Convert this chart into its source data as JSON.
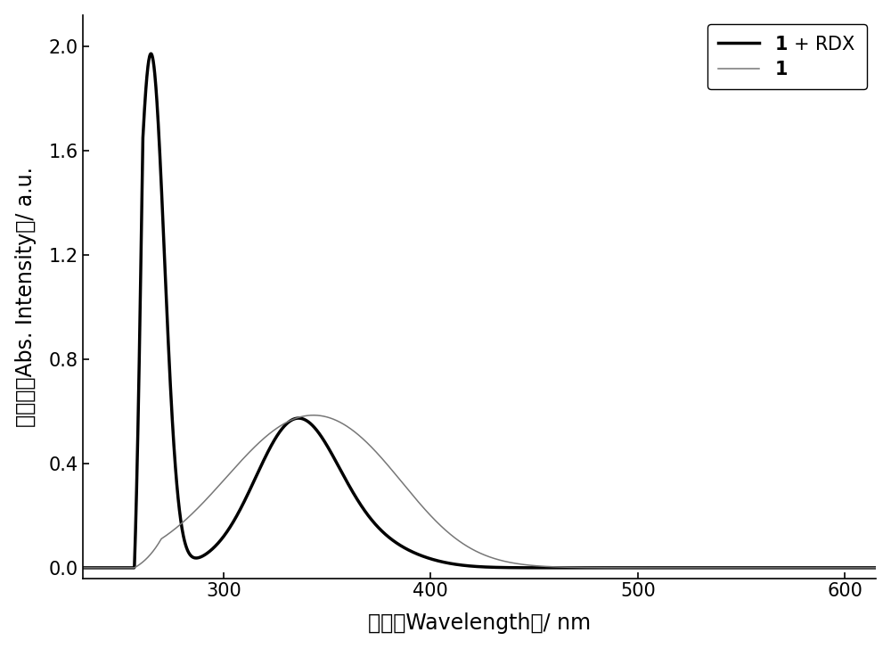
{
  "xlabel_chinese": "波长（Wavelength）/ nm",
  "ylabel_chinese": "吸光度（Abs. Intensity）/ a.u.",
  "xlim": [
    232,
    615
  ],
  "ylim": [
    -0.04,
    2.12
  ],
  "xticks": [
    300,
    400,
    500,
    600
  ],
  "yticks": [
    0.0,
    0.4,
    0.8,
    1.2,
    1.6,
    2.0
  ],
  "legend_labels": [
    "\\mathbf{1} + RDX",
    "\\mathbf{1}"
  ],
  "line1_color": "#000000",
  "line1_lw": 2.5,
  "line2_color": "#777777",
  "line2_lw": 1.1,
  "background_color": "#ffffff",
  "font_size_labels": 17,
  "font_size_ticks": 15,
  "font_size_legend": 15
}
